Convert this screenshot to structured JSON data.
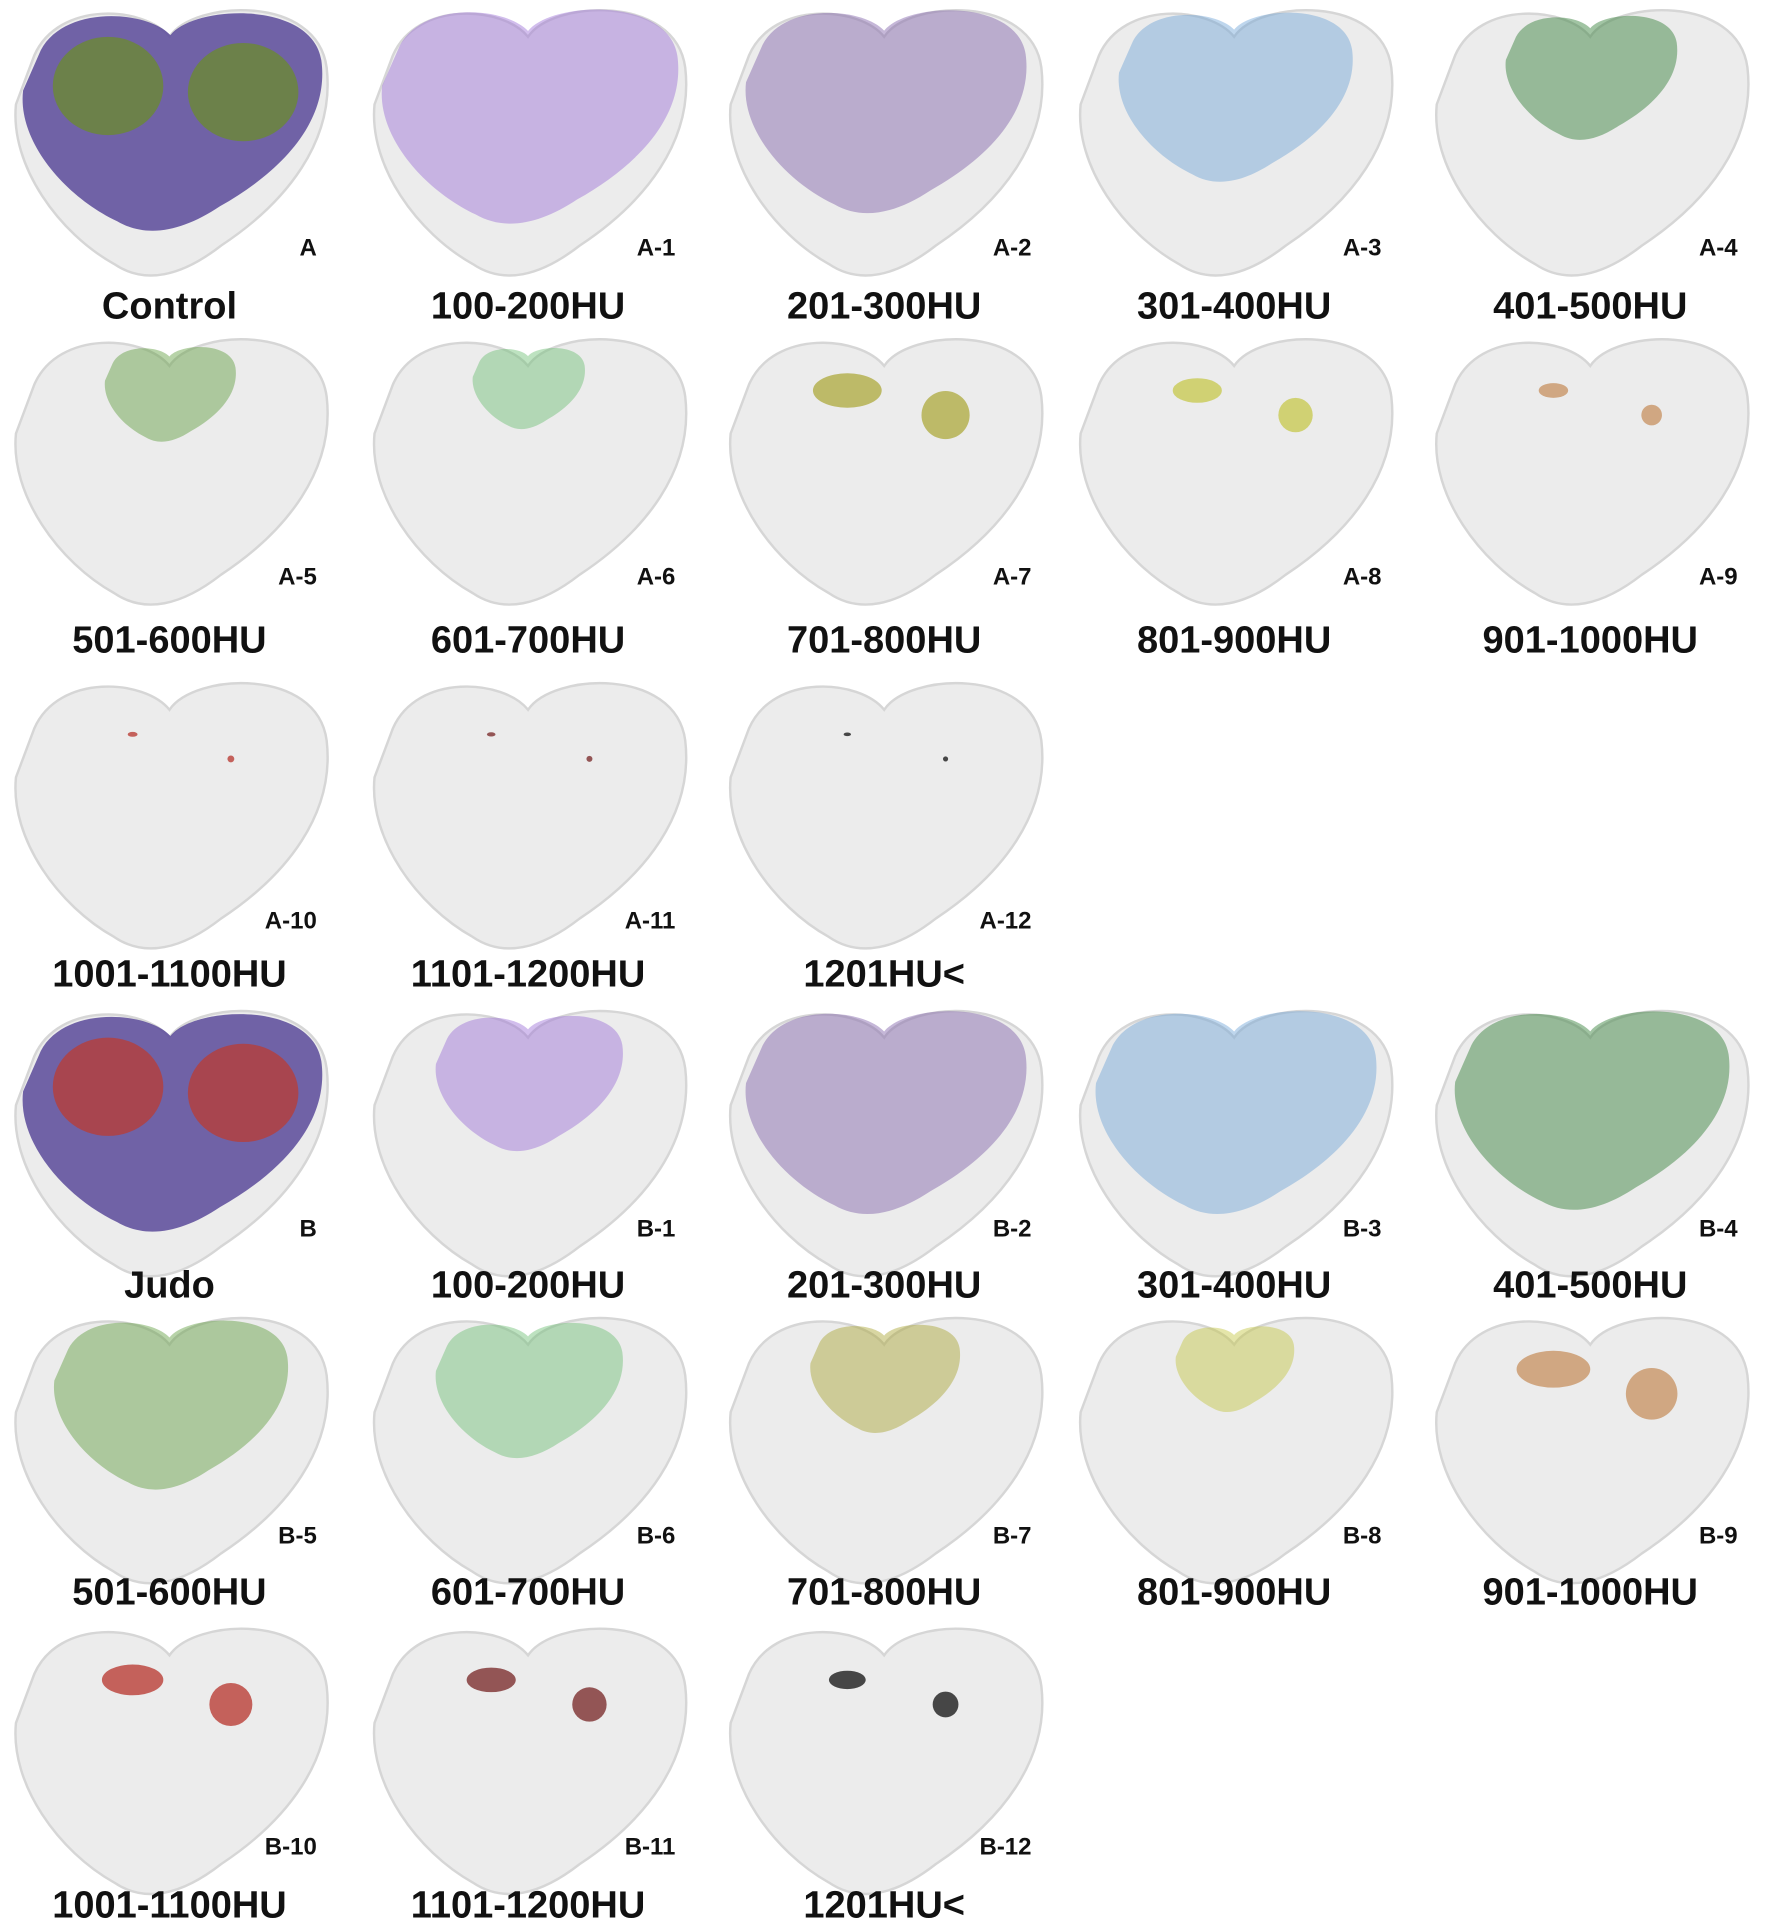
{
  "groups": [
    {
      "panels": [
        {
          "tag": "A",
          "caption": "Control"
        },
        {
          "tag": "A-1",
          "caption": "100-200HU"
        },
        {
          "tag": "A-2",
          "caption": "201-300HU"
        },
        {
          "tag": "A-3",
          "caption": "301-400HU"
        },
        {
          "tag": "A-4",
          "caption": "401-500HU"
        },
        {
          "tag": "A-5",
          "caption": "501-600HU"
        },
        {
          "tag": "A-6",
          "caption": "601-700HU"
        },
        {
          "tag": "A-7",
          "caption": "701-800HU"
        },
        {
          "tag": "A-8",
          "caption": "801-900HU"
        },
        {
          "tag": "A-9",
          "caption": "901-1000HU"
        },
        {
          "tag": "A-10",
          "caption": "1001-1100HU"
        },
        {
          "tag": "A-11",
          "caption": "1101-1200HU"
        },
        {
          "tag": "A-12",
          "caption": "1201HU<"
        }
      ]
    },
    {
      "panels": [
        {
          "tag": "B",
          "caption": "Judo"
        },
        {
          "tag": "B-1",
          "caption": "100-200HU"
        },
        {
          "tag": "B-2",
          "caption": "201-300HU"
        },
        {
          "tag": "B-3",
          "caption": "301-400HU"
        },
        {
          "tag": "B-4",
          "caption": "401-500HU"
        },
        {
          "tag": "B-5",
          "caption": "501-600HU"
        },
        {
          "tag": "B-6",
          "caption": "601-700HU"
        },
        {
          "tag": "B-7",
          "caption": "701-800HU"
        },
        {
          "tag": "B-8",
          "caption": "801-900HU"
        },
        {
          "tag": "B-9",
          "caption": "901-1000HU"
        },
        {
          "tag": "B-10",
          "caption": "1001-1100HU"
        },
        {
          "tag": "B-11",
          "caption": "1101-1200HU"
        },
        {
          "tag": "B-12",
          "caption": "1201HU<"
        }
      ]
    }
  ]
}
